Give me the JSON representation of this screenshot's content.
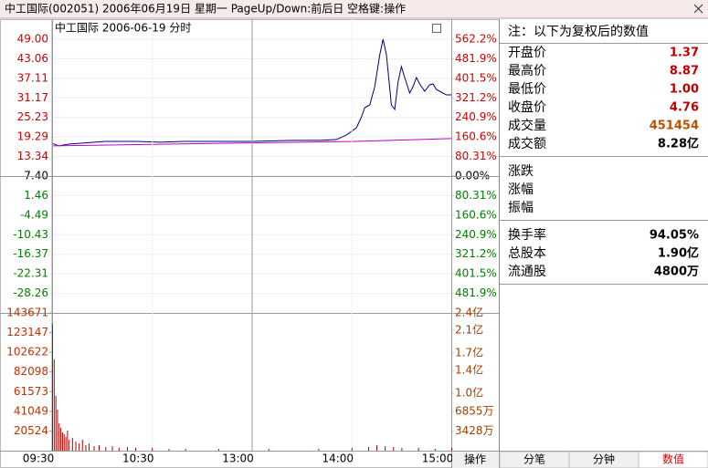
{
  "window": {
    "title": "中工国际(002051) 2006年06月19日 星期一 PageUp/Down:前后日 空格键:操作"
  },
  "chart_data": [
    {
      "type": "line",
      "title": "中工国际 2006-06-19 分时",
      "xlim": [
        0,
        240
      ],
      "ylim": [
        -34.2,
        49
      ],
      "yticks": [
        {
          "value": 49,
          "label": "49.00"
        },
        {
          "value": 43.06,
          "label": "43.06"
        },
        {
          "value": 37.11,
          "label": "37.11"
        },
        {
          "value": 31.17,
          "label": "31.17"
        },
        {
          "value": 25.23,
          "label": "25.23"
        },
        {
          "value": 19.29,
          "label": "19.29"
        },
        {
          "value": 13.34,
          "label": "13.34"
        },
        {
          "value": 7.4,
          "label": "7.40"
        },
        {
          "value": 1.46,
          "label": "1.46"
        },
        {
          "value": -4.49,
          "label": "-4.49"
        },
        {
          "value": -10.43,
          "label": "-10.43"
        },
        {
          "value": -16.37,
          "label": "-16.37"
        },
        {
          "value": -22.31,
          "label": "-22.31"
        },
        {
          "value": -28.26,
          "label": "-28.26"
        }
      ],
      "y2lim": [
        -562.2,
        562.2
      ],
      "y2ticks": [
        {
          "value": 562.2,
          "label": "562.2%"
        },
        {
          "value": 481.9,
          "label": "481.9%"
        },
        {
          "value": 401.5,
          "label": "401.5%"
        },
        {
          "value": 321.2,
          "label": "321.2%"
        },
        {
          "value": 240.9,
          "label": "240.9%"
        },
        {
          "value": 160.6,
          "label": "160.6%"
        },
        {
          "value": 80.31,
          "label": "80.31%"
        },
        {
          "value": 0,
          "label": "0.00%"
        },
        {
          "value": -80.31,
          "label": "80.31%"
        },
        {
          "value": -160.6,
          "label": "160.6%"
        },
        {
          "value": -240.9,
          "label": "240.9%"
        },
        {
          "value": -321.2,
          "label": "321.2%"
        },
        {
          "value": -401.5,
          "label": "401.5%"
        },
        {
          "value": -481.9,
          "label": "481.9%"
        }
      ],
      "grid": true,
      "series": [
        {
          "color": "#000080",
          "x": [
            0,
            4,
            10,
            18,
            32,
            51,
            65,
            79,
            100,
            120,
            144,
            161,
            171,
            177,
            183,
            186,
            188,
            191,
            194,
            197,
            199,
            201,
            204,
            206,
            208,
            210,
            212,
            215,
            217,
            219,
            221,
            224,
            227,
            229,
            231,
            233,
            237,
            240
          ],
          "values": [
            17.4,
            16.57,
            17.12,
            17.4,
            17.95,
            17.95,
            17.68,
            17.95,
            17.95,
            17.95,
            18.23,
            18.23,
            18.51,
            19.89,
            22.11,
            25.44,
            28.21,
            29.04,
            34.59,
            44.29,
            49,
            44.29,
            29.04,
            27.66,
            35.97,
            40.68,
            37.36,
            32.64,
            34.59,
            37.36,
            35.42,
            33.2,
            35.14,
            35.42,
            33.75,
            33.2,
            32.09,
            32.09
          ]
        },
        {
          "color": "#c000c0",
          "x": [
            0,
            120,
            180,
            240
          ],
          "values": [
            16.57,
            17.5,
            17.9,
            18.8
          ]
        }
      ]
    },
    {
      "type": "bar",
      "xlim": [
        0,
        240
      ],
      "xticks": [
        {
          "value": 0,
          "label": "09:30"
        },
        {
          "value": 60,
          "label": "10:30"
        },
        {
          "value": 120,
          "label": "13:00"
        },
        {
          "value": 180,
          "label": "14:00"
        },
        {
          "value": 240,
          "label": "15:00"
        }
      ],
      "ylim": [
        0,
        143671
      ],
      "yticks": [
        143671,
        123147,
        102622,
        82098,
        61573,
        41049,
        20524
      ],
      "y2lim": [
        0,
        240000000
      ],
      "y2ticks": [
        {
          "value": 240000000,
          "label": "2.4亿"
        },
        {
          "value": 210000000,
          "label": "2.1亿"
        },
        {
          "value": 170000000,
          "label": "1.7亿"
        },
        {
          "value": 140000000,
          "label": "1.4亿"
        },
        {
          "value": 100000000,
          "label": "1.0亿"
        },
        {
          "value": 68550000,
          "label": "6855万"
        },
        {
          "value": 34280000,
          "label": "3428万"
        }
      ],
      "color": "#c00000",
      "x": [
        0,
        1,
        2,
        3,
        4,
        5,
        6,
        7,
        8,
        9,
        10,
        12,
        14,
        16,
        18,
        20,
        22,
        25,
        28,
        32,
        36,
        40,
        45,
        50,
        60,
        70,
        80,
        100,
        130,
        160,
        180,
        190,
        195,
        200,
        205,
        210,
        220,
        230,
        240
      ],
      "values": [
        132260,
        95150,
        57090,
        42820,
        28550,
        23790,
        19030,
        17130,
        14270,
        20930,
        11420,
        13320,
        9520,
        7610,
        11420,
        5710,
        7610,
        4760,
        5710,
        3810,
        4760,
        2850,
        3810,
        2850,
        2850,
        1900,
        1900,
        1900,
        1900,
        1900,
        2850,
        3810,
        5710,
        4760,
        3810,
        2850,
        2850,
        1900,
        2850
      ]
    }
  ],
  "info": {
    "note": "注：以下为复权后的数值",
    "groups": [
      [
        {
          "label": "开盘价",
          "value": "1.37",
          "color": "#c00000"
        },
        {
          "label": "最高价",
          "value": "8.87",
          "color": "#c00000"
        },
        {
          "label": "最低价",
          "value": "1.00",
          "color": "#c00000"
        },
        {
          "label": "收盘价",
          "value": "4.76",
          "color": "#c00000"
        },
        {
          "label": "成交量",
          "value": "451454",
          "color": "#c05000"
        },
        {
          "label": "成交额",
          "value": "8.28亿",
          "color": "#000000"
        }
      ],
      [
        {
          "label": "涨跌"
        },
        {
          "label": "涨幅"
        },
        {
          "label": "振幅"
        }
      ],
      [
        {
          "label": "换手率",
          "value": "94.05%",
          "color": "#000000"
        },
        {
          "label": "总股本",
          "value": "1.90亿",
          "color": "#000000"
        },
        {
          "label": "流通股",
          "value": "4800万",
          "color": "#000000"
        }
      ]
    ]
  },
  "controls": {
    "operate": "操作",
    "tabs": [
      "分笔",
      "分钟",
      "数值"
    ],
    "active_tab": 2
  }
}
